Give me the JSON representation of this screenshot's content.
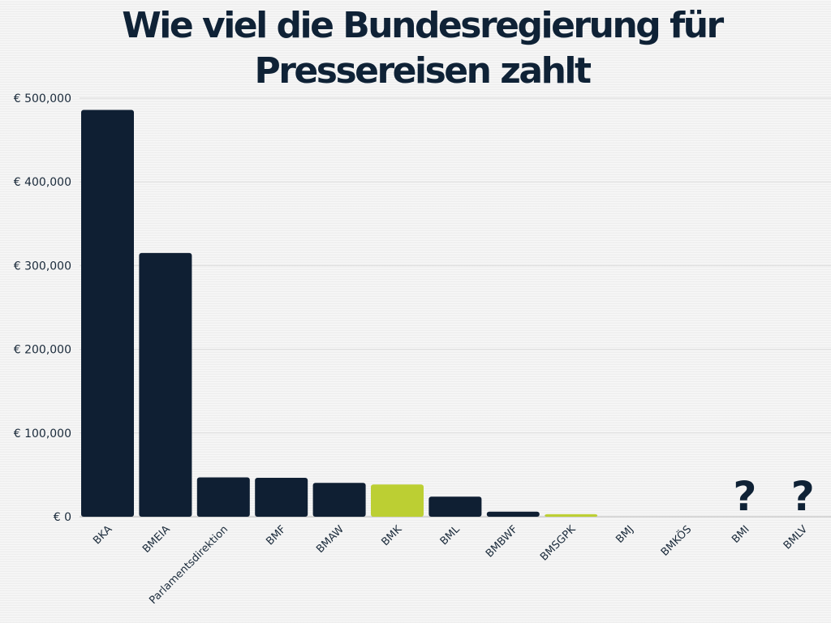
{
  "chart_data": {
    "type": "bar",
    "title": "Wie viel die Bundesregierung für Pressereisen zahlt",
    "xlabel": "",
    "ylabel": "",
    "ylim": [
      0,
      500000
    ],
    "yticks": [
      0,
      100000,
      200000,
      300000,
      400000,
      500000
    ],
    "ytick_labels": [
      "€ 0",
      "€ 100,000",
      "€ 200,000",
      "€ 300,000",
      "€ 400,000",
      "€ 500,000"
    ],
    "grid": true,
    "categories": [
      "BKA",
      "BMEIA",
      "Parlamentsdirektion",
      "BMF",
      "BMAW",
      "BMK",
      "BML",
      "BMBWF",
      "BMSGPK",
      "BMJ",
      "BMKÖS",
      "BMI",
      "BMLV"
    ],
    "values": [
      486000,
      315000,
      47000,
      46500,
      40500,
      38500,
      24000,
      6000,
      3000,
      0,
      0,
      null,
      null
    ],
    "colors": [
      "#0f1f33",
      "#0f1f33",
      "#0f1f33",
      "#0f1f33",
      "#0f1f33",
      "#bccf33",
      "#0f1f33",
      "#0f1f33",
      "#bccf33",
      "#0f1f33",
      "#0f1f33",
      "#0f1f33",
      "#0f1f33"
    ],
    "annotations": [
      {
        "category": "BMI",
        "text": "?"
      },
      {
        "category": "BMLV",
        "text": "?"
      }
    ]
  }
}
